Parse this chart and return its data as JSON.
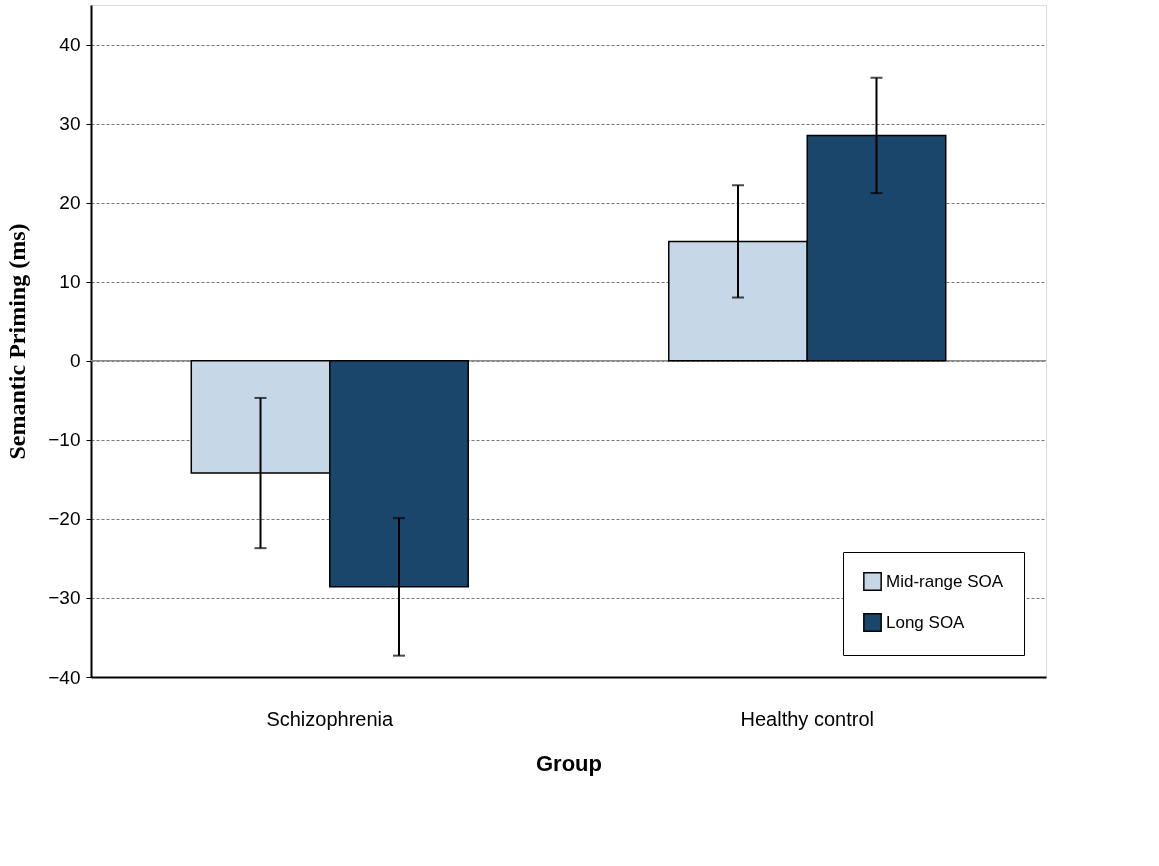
{
  "chart_data": {
    "type": "bar",
    "xlabel": "Group",
    "ylabel": "Semantic Priming (ms)",
    "categories": [
      "Schizophrenia",
      "Healthy control"
    ],
    "series": [
      {
        "name": "Mid-range SOA",
        "color": "#c6d7e7",
        "values": [
          -14.2,
          15.1
        ],
        "errors": [
          9.5,
          7.1
        ]
      },
      {
        "name": "Long SOA",
        "color": "#1b466c",
        "values": [
          -28.6,
          28.5
        ],
        "errors": [
          8.7,
          7.3
        ]
      }
    ],
    "ylim": [
      -40,
      45
    ],
    "yticks": [
      -40,
      -30,
      -20,
      -10,
      0,
      10,
      20,
      30,
      40
    ],
    "ref_lines": [
      {
        "axis": "y",
        "value": 0,
        "color": "#8c8c8c"
      }
    ],
    "grid": "y",
    "legend": "bottom right"
  }
}
